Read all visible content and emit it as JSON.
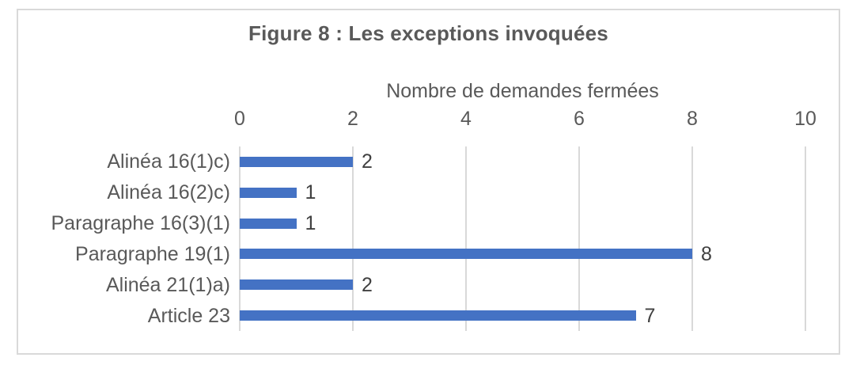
{
  "chart_data": {
    "type": "bar",
    "orientation": "horizontal",
    "title": "Figure 8 : Les exceptions invoquées",
    "xlabel": "Nombre de demandes fermées",
    "ylabel": "",
    "categories": [
      "Alinéa 16(1)c)",
      "Alinéa 16(2)c)",
      "Paragraphe 16(3)(1)",
      "Paragraphe 19(1)",
      "Alinéa 21(1)a)",
      "Article 23"
    ],
    "values": [
      2,
      1,
      1,
      8,
      2,
      7
    ],
    "data_labels": [
      "2",
      "1",
      "1",
      "8",
      "2",
      "7"
    ],
    "xlim": [
      0,
      10
    ],
    "xticks": [
      "0",
      "2",
      "4",
      "6",
      "8",
      "10"
    ],
    "grid": "vertical",
    "legend": "none",
    "colors": {
      "bar": "#4472C4",
      "gridline": "#D9D9D9",
      "frame_border": "#D9D9D9",
      "title_text": "#595959",
      "axis_text": "#595959",
      "data_label_text": "#404040"
    }
  }
}
